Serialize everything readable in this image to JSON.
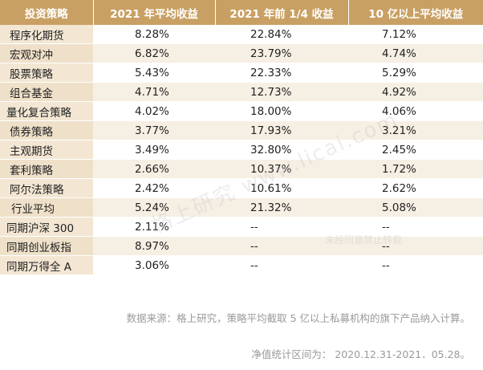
{
  "table": {
    "headers": [
      "投资策略",
      "2021 年平均收益",
      "2021 年前 1/4 收益",
      "10 亿以上平均收益"
    ],
    "rows": [
      {
        "name": "程序化期货",
        "avg2021": "8.28%",
        "q1": "22.84%",
        "over10b": "7.12%"
      },
      {
        "name": "宏观对冲",
        "avg2021": "6.82%",
        "q1": "23.79%",
        "over10b": "4.74%"
      },
      {
        "name": "股票策略",
        "avg2021": "5.43%",
        "q1": "22.33%",
        "over10b": "5.29%"
      },
      {
        "name": "组合基金",
        "avg2021": "4.71%",
        "q1": "12.73%",
        "over10b": "4.92%"
      },
      {
        "name": "量化复合策略",
        "avg2021": "4.02%",
        "q1": "18.00%",
        "over10b": "4.06%"
      },
      {
        "name": "债券策略",
        "avg2021": "3.77%",
        "q1": "17.93%",
        "over10b": "3.21%"
      },
      {
        "name": "主观期货",
        "avg2021": "3.49%",
        "q1": "32.80%",
        "over10b": "2.45%"
      },
      {
        "name": "套利策略",
        "avg2021": "2.66%",
        "q1": "10.37%",
        "over10b": "1.72%"
      },
      {
        "name": "阿尔法策略",
        "avg2021": "2.42%",
        "q1": "10.61%",
        "over10b": "2.62%"
      },
      {
        "name": "行业平均",
        "avg2021": "5.24%",
        "q1": "21.32%",
        "over10b": "5.08%"
      },
      {
        "name": "同期沪深 300",
        "avg2021": "2.11%",
        "q1": "--",
        "over10b": "--"
      },
      {
        "name": "同期创业板指",
        "avg2021": "8.97%",
        "q1": "--",
        "over10b": "--"
      },
      {
        "name": "同期万得全 A",
        "avg2021": "3.06%",
        "q1": "--",
        "over10b": "--"
      }
    ]
  },
  "footnotes": {
    "source": "数据来源：格上研究，策略平均截取 5 亿以上私募机构的旗下产品纳入计算。",
    "period": "净值统计区间为： 2020.12.31-2021．05.28。"
  },
  "watermark": {
    "text": "格上研究 www.licai.com",
    "stamp": "未经同意禁止转载"
  }
}
